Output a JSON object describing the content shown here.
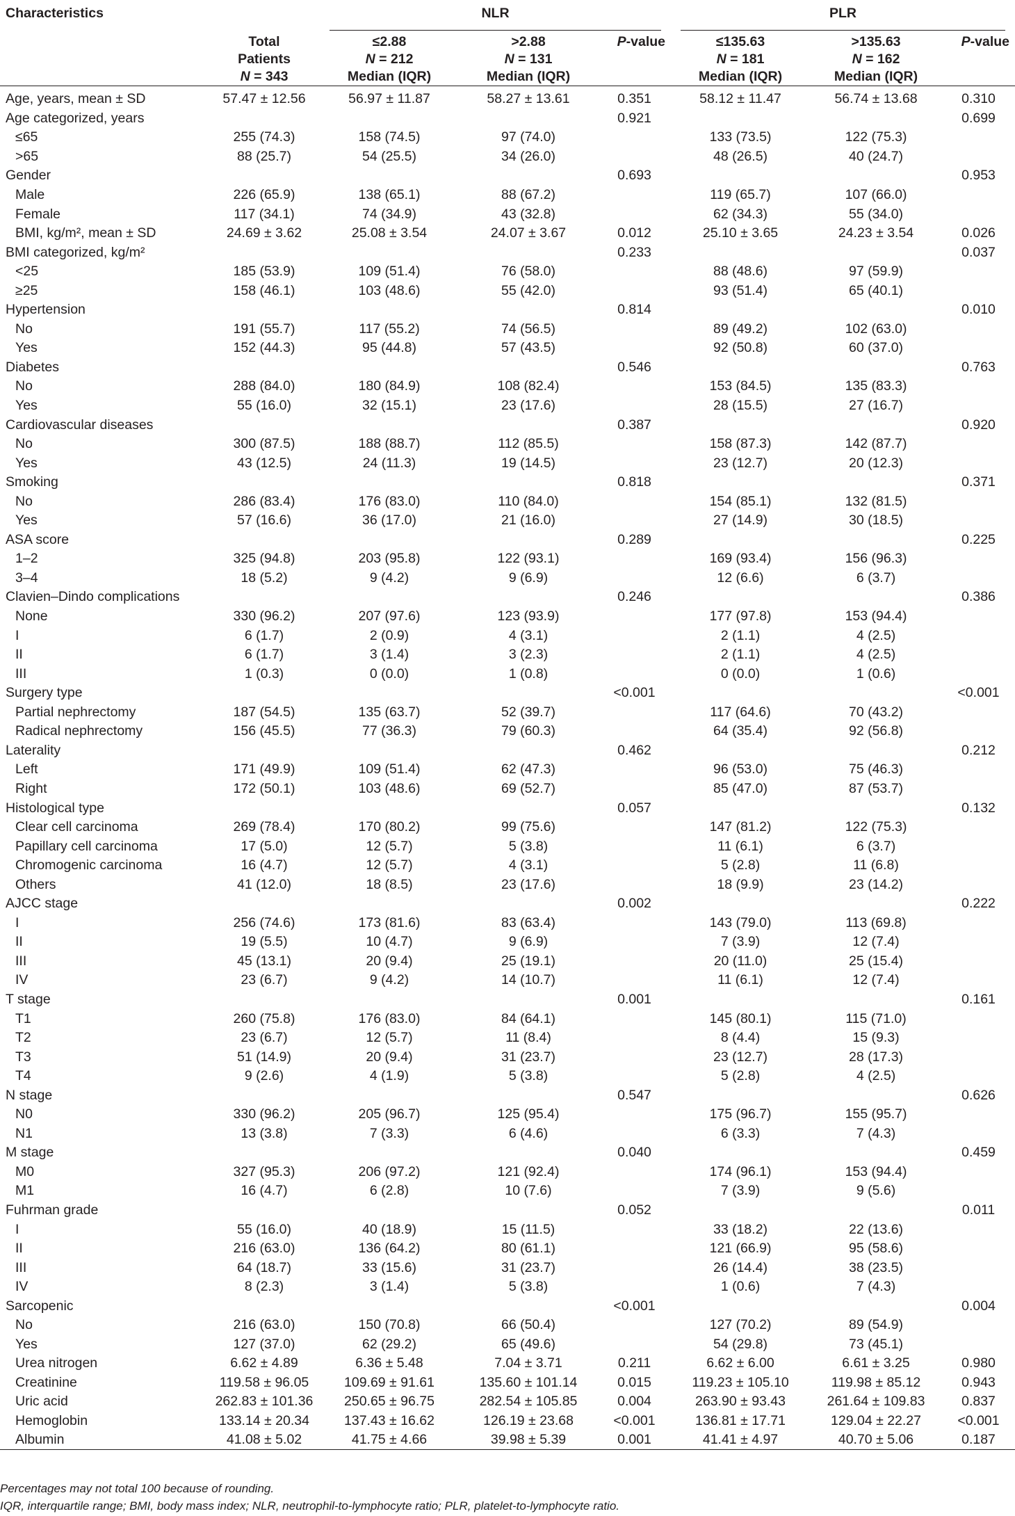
{
  "header": {
    "characteristics": "Characteristics",
    "nlr_group": "NLR",
    "plr_group": "PLR",
    "total": [
      "Total",
      "Patients",
      "N = 343"
    ],
    "nlr_low": [
      "≤2.88",
      "N = 212",
      "Median (IQR)"
    ],
    "nlr_high": [
      ">2.88",
      "N = 131",
      "Median (IQR)"
    ],
    "pvalue": "P-value",
    "plr_low": [
      "≤135.63",
      "N = 181",
      "Median (IQR)"
    ],
    "plr_high": [
      ">135.63",
      "N = 162",
      "Median (IQR)"
    ]
  },
  "rows": [
    {
      "label": "Age, years, mean ± SD",
      "sub": false,
      "total": "57.47 ± 12.56",
      "nlr_low": "56.97 ± 11.87",
      "nlr_high": "58.27 ± 13.61",
      "nlr_p": "0.351",
      "plr_low": "58.12 ± 11.47",
      "plr_high": "56.74 ± 13.68",
      "plr_p": "0.310"
    },
    {
      "label": "Age categorized, years",
      "sub": false,
      "total": "",
      "nlr_low": "",
      "nlr_high": "",
      "nlr_p": "0.921",
      "plr_low": "",
      "plr_high": "",
      "plr_p": "0.699"
    },
    {
      "label": "≤65",
      "sub": true,
      "total": "255 (74.3)",
      "nlr_low": "158 (74.5)",
      "nlr_high": "97 (74.0)",
      "nlr_p": "",
      "plr_low": "133 (73.5)",
      "plr_high": "122 (75.3)",
      "plr_p": ""
    },
    {
      "label": ">65",
      "sub": true,
      "total": "88 (25.7)",
      "nlr_low": "54 (25.5)",
      "nlr_high": "34 (26.0)",
      "nlr_p": "",
      "plr_low": "48 (26.5)",
      "plr_high": "40 (24.7)",
      "plr_p": ""
    },
    {
      "label": "Gender",
      "sub": false,
      "total": "",
      "nlr_low": "",
      "nlr_high": "",
      "nlr_p": "0.693",
      "plr_low": "",
      "plr_high": "",
      "plr_p": "0.953"
    },
    {
      "label": "Male",
      "sub": true,
      "total": "226 (65.9)",
      "nlr_low": "138 (65.1)",
      "nlr_high": "88 (67.2)",
      "nlr_p": "",
      "plr_low": "119 (65.7)",
      "plr_high": "107 (66.0)",
      "plr_p": ""
    },
    {
      "label": "Female",
      "sub": true,
      "total": "117 (34.1)",
      "nlr_low": "74 (34.9)",
      "nlr_high": "43 (32.8)",
      "nlr_p": "",
      "plr_low": "62 (34.3)",
      "plr_high": "55 (34.0)",
      "plr_p": ""
    },
    {
      "label": "BMI, kg/m², mean ± SD",
      "sub": true,
      "total": "24.69 ± 3.62",
      "nlr_low": "25.08 ± 3.54",
      "nlr_high": "24.07 ± 3.67",
      "nlr_p": "0.012",
      "plr_low": "25.10 ± 3.65",
      "plr_high": "24.23 ± 3.54",
      "plr_p": "0.026"
    },
    {
      "label": "BMI categorized, kg/m²",
      "sub": false,
      "total": "",
      "nlr_low": "",
      "nlr_high": "",
      "nlr_p": "0.233",
      "plr_low": "",
      "plr_high": "",
      "plr_p": "0.037"
    },
    {
      "label": "<25",
      "sub": true,
      "total": "185 (53.9)",
      "nlr_low": "109 (51.4)",
      "nlr_high": "76 (58.0)",
      "nlr_p": "",
      "plr_low": "88 (48.6)",
      "plr_high": "97 (59.9)",
      "plr_p": ""
    },
    {
      "label": "≥25",
      "sub": true,
      "total": "158 (46.1)",
      "nlr_low": "103 (48.6)",
      "nlr_high": "55 (42.0)",
      "nlr_p": "",
      "plr_low": "93 (51.4)",
      "plr_high": "65 (40.1)",
      "plr_p": ""
    },
    {
      "label": "Hypertension",
      "sub": false,
      "total": "",
      "nlr_low": "",
      "nlr_high": "",
      "nlr_p": "0.814",
      "plr_low": "",
      "plr_high": "",
      "plr_p": "0.010"
    },
    {
      "label": "No",
      "sub": true,
      "total": "191 (55.7)",
      "nlr_low": "117 (55.2)",
      "nlr_high": "74 (56.5)",
      "nlr_p": "",
      "plr_low": "89 (49.2)",
      "plr_high": "102 (63.0)",
      "plr_p": ""
    },
    {
      "label": "Yes",
      "sub": true,
      "total": "152 (44.3)",
      "nlr_low": "95 (44.8)",
      "nlr_high": "57 (43.5)",
      "nlr_p": "",
      "plr_low": "92 (50.8)",
      "plr_high": "60 (37.0)",
      "plr_p": ""
    },
    {
      "label": "Diabetes",
      "sub": false,
      "total": "",
      "nlr_low": "",
      "nlr_high": "",
      "nlr_p": "0.546",
      "plr_low": "",
      "plr_high": "",
      "plr_p": "0.763"
    },
    {
      "label": "No",
      "sub": true,
      "total": "288 (84.0)",
      "nlr_low": "180 (84.9)",
      "nlr_high": "108 (82.4)",
      "nlr_p": "",
      "plr_low": "153 (84.5)",
      "plr_high": "135 (83.3)",
      "plr_p": ""
    },
    {
      "label": "Yes",
      "sub": true,
      "total": "55 (16.0)",
      "nlr_low": "32 (15.1)",
      "nlr_high": "23 (17.6)",
      "nlr_p": "",
      "plr_low": "28 (15.5)",
      "plr_high": "27 (16.7)",
      "plr_p": ""
    },
    {
      "label": "Cardiovascular diseases",
      "sub": false,
      "total": "",
      "nlr_low": "",
      "nlr_high": "",
      "nlr_p": "0.387",
      "plr_low": "",
      "plr_high": "",
      "plr_p": "0.920"
    },
    {
      "label": "No",
      "sub": true,
      "total": "300 (87.5)",
      "nlr_low": "188 (88.7)",
      "nlr_high": "112 (85.5)",
      "nlr_p": "",
      "plr_low": "158 (87.3)",
      "plr_high": "142 (87.7)",
      "plr_p": ""
    },
    {
      "label": "Yes",
      "sub": true,
      "total": "43 (12.5)",
      "nlr_low": "24 (11.3)",
      "nlr_high": "19 (14.5)",
      "nlr_p": "",
      "plr_low": "23 (12.7)",
      "plr_high": "20 (12.3)",
      "plr_p": ""
    },
    {
      "label": "Smoking",
      "sub": false,
      "total": "",
      "nlr_low": "",
      "nlr_high": "",
      "nlr_p": "0.818",
      "plr_low": "",
      "plr_high": "",
      "plr_p": "0.371"
    },
    {
      "label": "No",
      "sub": true,
      "total": "286 (83.4)",
      "nlr_low": "176 (83.0)",
      "nlr_high": "110 (84.0)",
      "nlr_p": "",
      "plr_low": "154 (85.1)",
      "plr_high": "132 (81.5)",
      "plr_p": ""
    },
    {
      "label": "Yes",
      "sub": true,
      "total": "57 (16.6)",
      "nlr_low": "36 (17.0)",
      "nlr_high": "21 (16.0)",
      "nlr_p": "",
      "plr_low": "27 (14.9)",
      "plr_high": "30 (18.5)",
      "plr_p": ""
    },
    {
      "label": "ASA score",
      "sub": false,
      "total": "",
      "nlr_low": "",
      "nlr_high": "",
      "nlr_p": "0.289",
      "plr_low": "",
      "plr_high": "",
      "plr_p": "0.225"
    },
    {
      "label": "1–2",
      "sub": true,
      "total": "325 (94.8)",
      "nlr_low": "203 (95.8)",
      "nlr_high": "122 (93.1)",
      "nlr_p": "",
      "plr_low": "169 (93.4)",
      "plr_high": "156 (96.3)",
      "plr_p": ""
    },
    {
      "label": "3–4",
      "sub": true,
      "total": "18 (5.2)",
      "nlr_low": "9 (4.2)",
      "nlr_high": "9 (6.9)",
      "nlr_p": "",
      "plr_low": "12 (6.6)",
      "plr_high": "6 (3.7)",
      "plr_p": ""
    },
    {
      "label": "Clavien–Dindo complications",
      "sub": false,
      "total": "",
      "nlr_low": "",
      "nlr_high": "",
      "nlr_p": "0.246",
      "plr_low": "",
      "plr_high": "",
      "plr_p": "0.386"
    },
    {
      "label": "None",
      "sub": true,
      "total": "330 (96.2)",
      "nlr_low": "207 (97.6)",
      "nlr_high": "123 (93.9)",
      "nlr_p": "",
      "plr_low": "177 (97.8)",
      "plr_high": "153 (94.4)",
      "plr_p": ""
    },
    {
      "label": "I",
      "sub": true,
      "total": "6 (1.7)",
      "nlr_low": "2 (0.9)",
      "nlr_high": "4 (3.1)",
      "nlr_p": "",
      "plr_low": "2 (1.1)",
      "plr_high": "4 (2.5)",
      "plr_p": ""
    },
    {
      "label": "II",
      "sub": true,
      "total": "6 (1.7)",
      "nlr_low": "3 (1.4)",
      "nlr_high": "3 (2.3)",
      "nlr_p": "",
      "plr_low": "2 (1.1)",
      "plr_high": "4 (2.5)",
      "plr_p": ""
    },
    {
      "label": "III",
      "sub": true,
      "total": "1 (0.3)",
      "nlr_low": "0 (0.0)",
      "nlr_high": "1 (0.8)",
      "nlr_p": "",
      "plr_low": "0 (0.0)",
      "plr_high": "1 (0.6)",
      "plr_p": ""
    },
    {
      "label": "Surgery type",
      "sub": false,
      "total": "",
      "nlr_low": "",
      "nlr_high": "",
      "nlr_p": "<0.001",
      "plr_low": "",
      "plr_high": "",
      "plr_p": "<0.001"
    },
    {
      "label": "Partial nephrectomy",
      "sub": true,
      "total": "187 (54.5)",
      "nlr_low": "135 (63.7)",
      "nlr_high": "52 (39.7)",
      "nlr_p": "",
      "plr_low": "117 (64.6)",
      "plr_high": "70 (43.2)",
      "plr_p": ""
    },
    {
      "label": "Radical nephrectomy",
      "sub": true,
      "total": "156 (45.5)",
      "nlr_low": "77 (36.3)",
      "nlr_high": "79 (60.3)",
      "nlr_p": "",
      "plr_low": "64 (35.4)",
      "plr_high": "92 (56.8)",
      "plr_p": ""
    },
    {
      "label": "Laterality",
      "sub": false,
      "total": "",
      "nlr_low": "",
      "nlr_high": "",
      "nlr_p": "0.462",
      "plr_low": "",
      "plr_high": "",
      "plr_p": "0.212"
    },
    {
      "label": "Left",
      "sub": true,
      "total": "171 (49.9)",
      "nlr_low": "109 (51.4)",
      "nlr_high": "62 (47.3)",
      "nlr_p": "",
      "plr_low": "96 (53.0)",
      "plr_high": "75 (46.3)",
      "plr_p": ""
    },
    {
      "label": "Right",
      "sub": true,
      "total": "172 (50.1)",
      "nlr_low": "103 (48.6)",
      "nlr_high": "69 (52.7)",
      "nlr_p": "",
      "plr_low": "85 (47.0)",
      "plr_high": "87 (53.7)",
      "plr_p": ""
    },
    {
      "label": "Histological type",
      "sub": false,
      "total": "",
      "nlr_low": "",
      "nlr_high": "",
      "nlr_p": "0.057",
      "plr_low": "",
      "plr_high": "",
      "plr_p": "0.132"
    },
    {
      "label": "Clear cell carcinoma",
      "sub": true,
      "total": "269 (78.4)",
      "nlr_low": "170 (80.2)",
      "nlr_high": "99 (75.6)",
      "nlr_p": "",
      "plr_low": "147 (81.2)",
      "plr_high": "122 (75.3)",
      "plr_p": ""
    },
    {
      "label": "Papillary cell carcinoma",
      "sub": true,
      "total": "17 (5.0)",
      "nlr_low": "12 (5.7)",
      "nlr_high": "5 (3.8)",
      "nlr_p": "",
      "plr_low": "11 (6.1)",
      "plr_high": "6 (3.7)",
      "plr_p": ""
    },
    {
      "label": "Chromogenic carcinoma",
      "sub": true,
      "total": "16 (4.7)",
      "nlr_low": "12 (5.7)",
      "nlr_high": "4 (3.1)",
      "nlr_p": "",
      "plr_low": "5 (2.8)",
      "plr_high": "11 (6.8)",
      "plr_p": ""
    },
    {
      "label": "Others",
      "sub": true,
      "total": "41 (12.0)",
      "nlr_low": "18 (8.5)",
      "nlr_high": "23 (17.6)",
      "nlr_p": "",
      "plr_low": "18 (9.9)",
      "plr_high": "23 (14.2)",
      "plr_p": ""
    },
    {
      "label": "AJCC stage",
      "sub": false,
      "total": "",
      "nlr_low": "",
      "nlr_high": "",
      "nlr_p": "0.002",
      "plr_low": "",
      "plr_high": "",
      "plr_p": "0.222"
    },
    {
      "label": "I",
      "sub": true,
      "total": "256 (74.6)",
      "nlr_low": "173 (81.6)",
      "nlr_high": "83 (63.4)",
      "nlr_p": "",
      "plr_low": "143 (79.0)",
      "plr_high": "113 (69.8)",
      "plr_p": ""
    },
    {
      "label": "II",
      "sub": true,
      "total": "19 (5.5)",
      "nlr_low": "10 (4.7)",
      "nlr_high": "9 (6.9)",
      "nlr_p": "",
      "plr_low": "7 (3.9)",
      "plr_high": "12 (7.4)",
      "plr_p": ""
    },
    {
      "label": "III",
      "sub": true,
      "total": "45 (13.1)",
      "nlr_low": "20 (9.4)",
      "nlr_high": "25 (19.1)",
      "nlr_p": "",
      "plr_low": "20 (11.0)",
      "plr_high": "25 (15.4)",
      "plr_p": ""
    },
    {
      "label": "IV",
      "sub": true,
      "total": "23 (6.7)",
      "nlr_low": "9 (4.2)",
      "nlr_high": "14 (10.7)",
      "nlr_p": "",
      "plr_low": "11 (6.1)",
      "plr_high": "12 (7.4)",
      "plr_p": ""
    },
    {
      "label": "T stage",
      "sub": false,
      "total": "",
      "nlr_low": "",
      "nlr_high": "",
      "nlr_p": "0.001",
      "plr_low": "",
      "plr_high": "",
      "plr_p": "0.161"
    },
    {
      "label": "T1",
      "sub": true,
      "total": "260 (75.8)",
      "nlr_low": "176 (83.0)",
      "nlr_high": "84 (64.1)",
      "nlr_p": "",
      "plr_low": "145 (80.1)",
      "plr_high": "115 (71.0)",
      "plr_p": ""
    },
    {
      "label": "T2",
      "sub": true,
      "total": "23 (6.7)",
      "nlr_low": "12 (5.7)",
      "nlr_high": "11 (8.4)",
      "nlr_p": "",
      "plr_low": "8 (4.4)",
      "plr_high": "15 (9.3)",
      "plr_p": ""
    },
    {
      "label": "T3",
      "sub": true,
      "total": "51 (14.9)",
      "nlr_low": "20 (9.4)",
      "nlr_high": "31 (23.7)",
      "nlr_p": "",
      "plr_low": "23 (12.7)",
      "plr_high": "28 (17.3)",
      "plr_p": ""
    },
    {
      "label": "T4",
      "sub": true,
      "total": "9 (2.6)",
      "nlr_low": "4 (1.9)",
      "nlr_high": "5 (3.8)",
      "nlr_p": "",
      "plr_low": "5 (2.8)",
      "plr_high": "4 (2.5)",
      "plr_p": ""
    },
    {
      "label": "N stage",
      "sub": false,
      "total": "",
      "nlr_low": "",
      "nlr_high": "",
      "nlr_p": "0.547",
      "plr_low": "",
      "plr_high": "",
      "plr_p": "0.626"
    },
    {
      "label": "N0",
      "sub": true,
      "total": "330 (96.2)",
      "nlr_low": "205 (96.7)",
      "nlr_high": "125 (95.4)",
      "nlr_p": "",
      "plr_low": "175 (96.7)",
      "plr_high": "155 (95.7)",
      "plr_p": ""
    },
    {
      "label": "N1",
      "sub": true,
      "total": "13 (3.8)",
      "nlr_low": "7 (3.3)",
      "nlr_high": "6 (4.6)",
      "nlr_p": "",
      "plr_low": "6 (3.3)",
      "plr_high": "7 (4.3)",
      "plr_p": ""
    },
    {
      "label": "M stage",
      "sub": false,
      "total": "",
      "nlr_low": "",
      "nlr_high": "",
      "nlr_p": "0.040",
      "plr_low": "",
      "plr_high": "",
      "plr_p": "0.459"
    },
    {
      "label": "M0",
      "sub": true,
      "total": "327 (95.3)",
      "nlr_low": "206 (97.2)",
      "nlr_high": "121 (92.4)",
      "nlr_p": "",
      "plr_low": "174 (96.1)",
      "plr_high": "153 (94.4)",
      "plr_p": ""
    },
    {
      "label": "M1",
      "sub": true,
      "total": "16 (4.7)",
      "nlr_low": "6 (2.8)",
      "nlr_high": "10 (7.6)",
      "nlr_p": "",
      "plr_low": "7 (3.9)",
      "plr_high": "9 (5.6)",
      "plr_p": ""
    },
    {
      "label": "Fuhrman grade",
      "sub": false,
      "total": "",
      "nlr_low": "",
      "nlr_high": "",
      "nlr_p": "0.052",
      "plr_low": "",
      "plr_high": "",
      "plr_p": "0.011"
    },
    {
      "label": "I",
      "sub": true,
      "total": "55 (16.0)",
      "nlr_low": "40 (18.9)",
      "nlr_high": "15 (11.5)",
      "nlr_p": "",
      "plr_low": "33 (18.2)",
      "plr_high": "22 (13.6)",
      "plr_p": ""
    },
    {
      "label": "II",
      "sub": true,
      "total": "216 (63.0)",
      "nlr_low": "136 (64.2)",
      "nlr_high": "80 (61.1)",
      "nlr_p": "",
      "plr_low": "121 (66.9)",
      "plr_high": "95 (58.6)",
      "plr_p": ""
    },
    {
      "label": "III",
      "sub": true,
      "total": "64 (18.7)",
      "nlr_low": "33 (15.6)",
      "nlr_high": "31 (23.7)",
      "nlr_p": "",
      "plr_low": "26 (14.4)",
      "plr_high": "38 (23.5)",
      "plr_p": ""
    },
    {
      "label": "IV",
      "sub": true,
      "total": "8 (2.3)",
      "nlr_low": "3 (1.4)",
      "nlr_high": "5 (3.8)",
      "nlr_p": "",
      "plr_low": "1 (0.6)",
      "plr_high": "7 (4.3)",
      "plr_p": ""
    },
    {
      "label": "Sarcopenic",
      "sub": false,
      "total": "",
      "nlr_low": "",
      "nlr_high": "",
      "nlr_p": "<0.001",
      "plr_low": "",
      "plr_high": "",
      "plr_p": "0.004"
    },
    {
      "label": "No",
      "sub": true,
      "total": "216 (63.0)",
      "nlr_low": "150 (70.8)",
      "nlr_high": "66 (50.4)",
      "nlr_p": "",
      "plr_low": "127 (70.2)",
      "plr_high": "89 (54.9)",
      "plr_p": ""
    },
    {
      "label": "Yes",
      "sub": true,
      "total": "127 (37.0)",
      "nlr_low": "62 (29.2)",
      "nlr_high": "65 (49.6)",
      "nlr_p": "",
      "plr_low": "54 (29.8)",
      "plr_high": "73 (45.1)",
      "plr_p": ""
    },
    {
      "label": "Urea nitrogen",
      "sub": true,
      "total": "6.62 ± 4.89",
      "nlr_low": "6.36 ± 5.48",
      "nlr_high": "7.04 ± 3.71",
      "nlr_p": "0.211",
      "plr_low": "6.62 ± 6.00",
      "plr_high": "6.61 ± 3.25",
      "plr_p": "0.980"
    },
    {
      "label": "Creatinine",
      "sub": true,
      "total": "119.58 ± 96.05",
      "nlr_low": "109.69 ± 91.61",
      "nlr_high": "135.60 ± 101.14",
      "nlr_p": "0.015",
      "plr_low": "119.23 ± 105.10",
      "plr_high": "119.98 ± 85.12",
      "plr_p": "0.943"
    },
    {
      "label": "Uric acid",
      "sub": true,
      "total": "262.83 ± 101.36",
      "nlr_low": "250.65 ± 96.75",
      "nlr_high": "282.54 ± 105.85",
      "nlr_p": "0.004",
      "plr_low": "263.90 ± 93.43",
      "plr_high": "261.64 ± 109.83",
      "plr_p": "0.837"
    },
    {
      "label": "Hemoglobin",
      "sub": true,
      "total": "133.14 ± 20.34",
      "nlr_low": "137.43 ± 16.62",
      "nlr_high": "126.19 ± 23.68",
      "nlr_p": "<0.001",
      "plr_low": "136.81 ± 17.71",
      "plr_high": "129.04 ± 22.27",
      "plr_p": "<0.001"
    },
    {
      "label": "Albumin",
      "sub": true,
      "total": "41.08 ± 5.02",
      "nlr_low": "41.75 ± 4.66",
      "nlr_high": "39.98 ± 5.39",
      "nlr_p": "0.001",
      "plr_low": "41.41 ± 4.97",
      "plr_high": "40.70 ± 5.06",
      "plr_p": "0.187"
    }
  ],
  "footnotes": [
    "Percentages may not total 100 because of rounding.",
    "IQR, interquartile range; BMI, body mass index; NLR, neutrophil-to-lymphocyte ratio; PLR, platelet-to-lymphocyte ratio."
  ]
}
